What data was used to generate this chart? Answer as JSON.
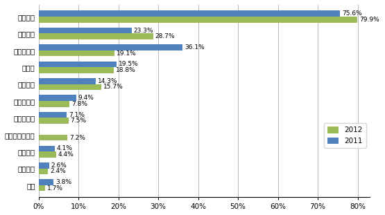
{
  "categories": [
    "产品质量",
    "供货能力",
    "产品性价比",
    "交货期",
    "技术支持",
    "技术领先性",
    "品牌知名度",
    "小批量供应服务",
    "产品组合",
    "付款条件",
    "信誉"
  ],
  "values_2012": [
    79.9,
    28.7,
    19.1,
    18.8,
    15.7,
    7.8,
    7.5,
    7.2,
    4.4,
    2.4,
    1.7
  ],
  "values_2011": [
    75.6,
    23.3,
    36.1,
    19.5,
    14.3,
    9.4,
    7.1,
    0,
    4.1,
    2.6,
    3.8
  ],
  "has_2011": [
    true,
    true,
    true,
    true,
    true,
    true,
    true,
    false,
    true,
    true,
    true
  ],
  "labels_2012": [
    "79.9%",
    "28.7%",
    "19.1%",
    "18.8%",
    "15.7%",
    "7.8%",
    "7.5%",
    "7.2%",
    "4.4%",
    "2.4%",
    "1.7%"
  ],
  "labels_2011": [
    "75.6%",
    "23.3%",
    "36.1%",
    "19.5%",
    "14.3%",
    "9.4%",
    "7.1%",
    "",
    "4.1%",
    "2.6%",
    "3.8%"
  ],
  "color_2012": "#9BBB59",
  "color_2011": "#4F81BD",
  "xlim": [
    0,
    83
  ],
  "xticks": [
    0,
    10,
    20,
    30,
    40,
    50,
    60,
    70,
    80
  ],
  "xtick_labels": [
    "0%",
    "10%",
    "20%",
    "30%",
    "40%",
    "50%",
    "60%",
    "70%",
    "80%"
  ],
  "legend_labels": [
    "2012",
    "2011"
  ],
  "bar_height": 0.35,
  "figsize": [
    5.55,
    3.11
  ],
  "dpi": 100,
  "fontsize": 7.5,
  "label_fontsize": 6.5
}
